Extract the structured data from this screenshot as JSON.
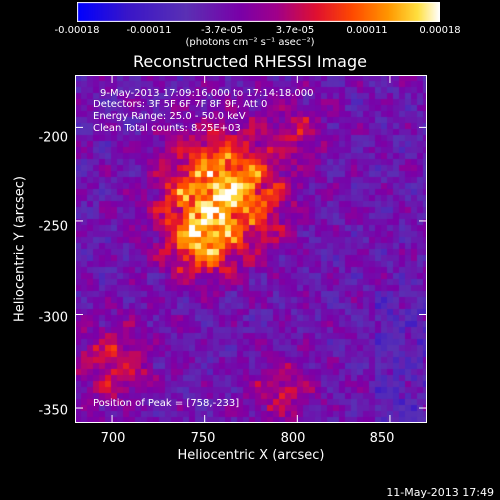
{
  "colors": {
    "colorbar_stops": [
      "#0000ff",
      "#3300c0",
      "#4a2fb0",
      "#6b00a0",
      "#8b00a0",
      "#c00060",
      "#ff3000",
      "#ff8000",
      "#ffd000",
      "#ffffff"
    ],
    "cmap": [
      [
        0.0,
        "#0000ff"
      ],
      [
        0.14,
        "#3a16c8"
      ],
      [
        0.3,
        "#5a30b4"
      ],
      [
        0.45,
        "#7a00a8"
      ],
      [
        0.55,
        "#a0008a"
      ],
      [
        0.66,
        "#e01030"
      ],
      [
        0.76,
        "#ff4a00"
      ],
      [
        0.86,
        "#ff9800"
      ],
      [
        0.94,
        "#ffe040"
      ],
      [
        1.0,
        "#ffffff"
      ]
    ]
  },
  "colorbar": {
    "tick_labels": [
      "-0.00018",
      "-0.00011",
      "-3.7e-05",
      "3.7e-05",
      "0.00011",
      "0.00018"
    ],
    "units": "(photons cm⁻² s⁻¹ asec⁻²)"
  },
  "title": "Reconstructed RHESSI Image",
  "annotations": {
    "time_range": "9-May-2013 17:09:16.000 to 17:14:18.000",
    "detectors": "Detectors: 3F 5F 6F 7F 8F 9F, Att 0",
    "energy": "Energy Range: 25.0 - 50.0 keV",
    "clean": "Clean     Total counts: 8.25E+03",
    "peak": "Position of Peak = [758,-233]"
  },
  "chart_data": {
    "type": "heatmap",
    "title": "Reconstructed RHESSI Image",
    "xlabel": "Heliocentric X (arcsec)",
    "ylabel": "Heliocentric Y (arcsec)",
    "xlim": [
      680,
      870
    ],
    "ylim": [
      -358,
      -172
    ],
    "x_ticks": [
      700,
      750,
      800,
      850
    ],
    "x_tick_labels": [
      "700",
      "750",
      "800",
      "850"
    ],
    "y_ticks": [
      -200,
      -250,
      -300,
      -350
    ],
    "y_tick_labels": [
      "-200",
      "-250",
      "-300",
      "-350"
    ],
    "value_range": [
      -0.00018,
      0.00018
    ],
    "colorbar_ticks": [
      -0.00018,
      -0.00011,
      -3.7e-05,
      3.7e-05,
      0.00011,
      0.00018
    ],
    "peak_position": [
      758,
      -233
    ],
    "grid": false
  },
  "timestamp": "11-May-2013 17:49"
}
